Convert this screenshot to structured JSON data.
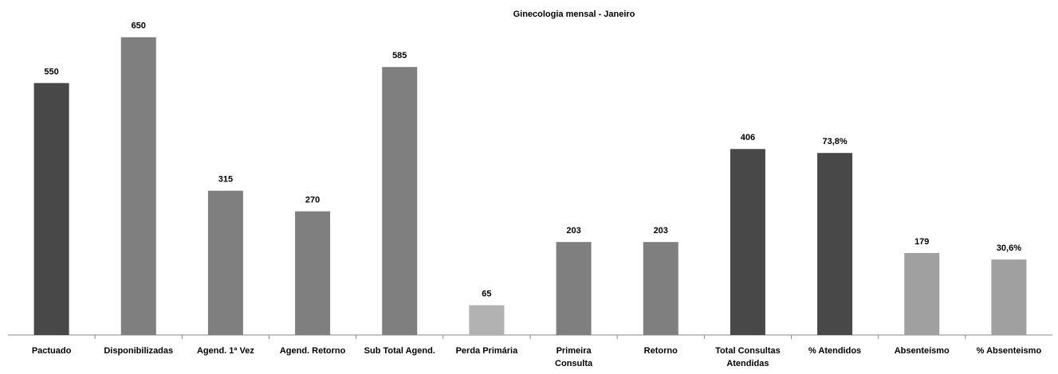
{
  "chart_data": {
    "type": "bar",
    "title": "Ginecologia mensal  - Janeiro",
    "categories": [
      "Pactuado",
      "Disponibilizadas",
      "Agend. 1ª Vez",
      "Agend. Retorno",
      "Sub Total Agend.",
      "Perda Primária",
      "Primeira Consulta",
      "Retorno",
      "Total Consultas Atendidas",
      "% Atendidos",
      "Absenteísmo",
      "% Absenteismo"
    ],
    "series": [
      {
        "values": [
          550,
          650,
          315,
          270,
          585,
          65,
          203,
          203,
          406,
          null,
          179,
          null
        ],
        "colors": [
          "#484848",
          "#7f7f7f",
          "#7f7f7f",
          "#7f7f7f",
          "#7f7f7f",
          "#b2b2b2",
          "#7f7f7f",
          "#7f7f7f",
          "#484848",
          null,
          "#a0a0a0",
          null
        ]
      },
      {
        "axis": "y2",
        "values": [
          null,
          null,
          null,
          null,
          null,
          null,
          null,
          null,
          null,
          73.8,
          null,
          30.6
        ],
        "value_labels": [
          null,
          null,
          null,
          null,
          null,
          null,
          null,
          null,
          null,
          "73,8%",
          null,
          "30,6%"
        ],
        "colors": [
          null,
          null,
          null,
          null,
          null,
          null,
          null,
          null,
          null,
          "#484848",
          null,
          "#a0a0a0"
        ]
      }
    ],
    "ylim": [
      0,
      700
    ],
    "y2lim": [
      0,
      130
    ]
  }
}
